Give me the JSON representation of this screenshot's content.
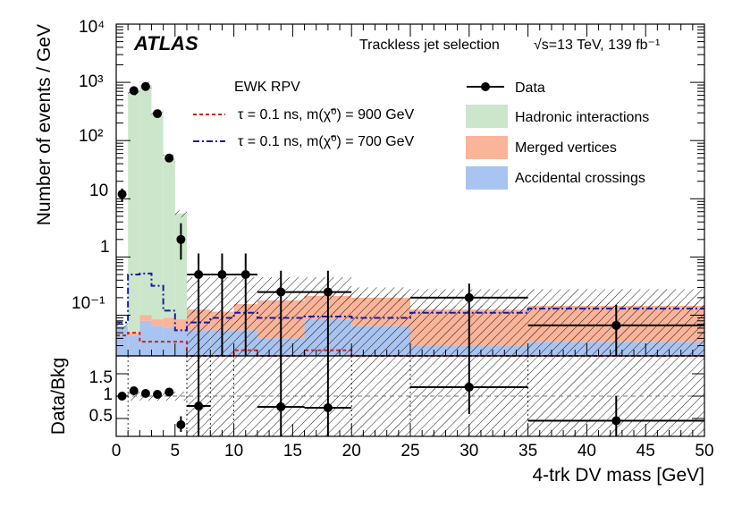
{
  "chart_data": {
    "type": "bar",
    "experiment": "ATLAS",
    "selection": "Trackless jet selection",
    "energy_label": "√s=13 TeV, 139 fb⁻¹",
    "signal_group_label": "EWK RPV",
    "xlabel": "4-trk DV mass [GeV]",
    "ylabel": "Number of events / GeV",
    "ratio_ylabel": "Data/Bkg",
    "xlim": [
      0,
      50
    ],
    "ylim": [
      0.02,
      10000
    ],
    "ratio_ylim": [
      0.1,
      1.9
    ],
    "x_ticks": [
      "0",
      "5",
      "10",
      "15",
      "20",
      "25",
      "30",
      "35",
      "40",
      "45",
      "50"
    ],
    "y_ticks": [
      "10⁻¹",
      "1",
      "10",
      "10²",
      "10³",
      "10⁴"
    ],
    "ratio_ticks": [
      "0.5",
      "1",
      "1.5"
    ],
    "colors": {
      "hadronic": "#cce6cc",
      "merged": "#f9b499",
      "accidental": "#a9c4f0",
      "signal900": "#d62020",
      "signal700": "#1a1aa8"
    },
    "legend": {
      "data": "Data",
      "hadronic": "Hadronic interactions",
      "merged": "Merged vertices",
      "accidental": "Accidental crossings",
      "signal900": "τ = 0.1 ns, m(χ̃⁰) = 900 GeV",
      "signal700": "τ = 0.1 ns, m(χ̃⁰) = 700 GeV"
    },
    "bins": [
      {
        "lo": 0,
        "hi": 1,
        "accidental": 0.065,
        "merged": 0.0,
        "hadronic": 0.0,
        "total": 0.065,
        "sig900": 0.045,
        "sig700": 0.075
      },
      {
        "lo": 1,
        "hi": 2,
        "accidental": 0.045,
        "merged": 0.005,
        "hadronic": 680,
        "total": 680,
        "sig900": 0.05,
        "sig700": 0.5
      },
      {
        "lo": 2,
        "hi": 3,
        "accidental": 0.08,
        "merged": 0.02,
        "hadronic": 900,
        "total": 900,
        "sig900": 0.035,
        "sig700": 0.52
      },
      {
        "lo": 3,
        "hi": 4,
        "accidental": 0.065,
        "merged": 0.02,
        "hadronic": 290,
        "total": 290,
        "sig900": 0.035,
        "sig700": 0.32
      },
      {
        "lo": 4,
        "hi": 5,
        "accidental": 0.06,
        "merged": 0.03,
        "hadronic": 50,
        "total": 50,
        "sig900": 0.035,
        "sig700": 0.12
      },
      {
        "lo": 5,
        "hi": 6,
        "accidental": 0.055,
        "merged": 0.03,
        "hadronic": 5.5,
        "total": 5.5,
        "sig900": 0.035,
        "sig700": 0.055
      },
      {
        "lo": 6,
        "hi": 8,
        "accidental": 0.055,
        "merged": 0.07,
        "hadronic": 0.0,
        "total": 0.125,
        "sig900": 0.012,
        "sig700": 0.075
      },
      {
        "lo": 8,
        "hi": 10,
        "accidental": 0.055,
        "merged": 0.06,
        "hadronic": 0.0,
        "total": 0.115,
        "sig900": 0.012,
        "sig700": 0.09
      },
      {
        "lo": 10,
        "hi": 12,
        "accidental": 0.055,
        "merged": 0.1,
        "hadronic": 0.0,
        "total": 0.155,
        "sig900": 0.025,
        "sig700": 0.11
      },
      {
        "lo": 12,
        "hi": 16,
        "accidental": 0.04,
        "merged": 0.14,
        "hadronic": 0.0,
        "total": 0.18,
        "sig900": 0.013,
        "sig700": 0.09
      },
      {
        "lo": 16,
        "hi": 20,
        "accidental": 0.085,
        "merged": 0.13,
        "hadronic": 0.0,
        "total": 0.215,
        "sig900": 0.025,
        "sig700": 0.095
      },
      {
        "lo": 20,
        "hi": 25,
        "accidental": 0.065,
        "merged": 0.135,
        "hadronic": 0.0,
        "total": 0.2,
        "sig900": 0.014,
        "sig700": 0.09
      },
      {
        "lo": 25,
        "hi": 35,
        "accidental": 0.03,
        "merged": 0.095,
        "hadronic": 0.0,
        "total": 0.125,
        "sig900": 0.015,
        "sig700": 0.11
      },
      {
        "lo": 35,
        "hi": 50,
        "accidental": 0.035,
        "merged": 0.11,
        "hadronic": 0.0,
        "total": 0.145,
        "sig900": 0.014,
        "sig700": 0.13
      }
    ],
    "bkg_unc_band": [
      {
        "lo": 6,
        "hi": 20,
        "down": 0.02,
        "up": 0.45
      },
      {
        "lo": 20,
        "hi": 25,
        "down": 0.02,
        "up": 0.3
      },
      {
        "lo": 25,
        "hi": 35,
        "down": 0.02,
        "up": 0.28
      },
      {
        "lo": 35,
        "hi": 50,
        "down": 0.02,
        "up": 0.28
      }
    ],
    "data_points": [
      {
        "x": 0.5,
        "y": 12,
        "ylo": 9,
        "yhi": 15,
        "xerr": 0
      },
      {
        "x": 1.5,
        "y": 720,
        "ylo": 680,
        "yhi": 760,
        "xerr": 0
      },
      {
        "x": 2.5,
        "y": 850,
        "ylo": 800,
        "yhi": 900,
        "xerr": 0
      },
      {
        "x": 3.5,
        "y": 290,
        "ylo": 260,
        "yhi": 320,
        "xerr": 0
      },
      {
        "x": 4.5,
        "y": 50,
        "ylo": 43,
        "yhi": 57,
        "xerr": 0
      },
      {
        "x": 5.5,
        "y": 2,
        "ylo": 0.9,
        "yhi": 3.8,
        "xerr": 0
      },
      {
        "x": 7,
        "y": 0.5,
        "ylo": 0.02,
        "yhi": 1.15,
        "xerr": 1
      },
      {
        "x": 9,
        "y": 0.5,
        "ylo": 0.02,
        "yhi": 1.15,
        "xerr": 1
      },
      {
        "x": 11,
        "y": 0.5,
        "ylo": 0.02,
        "yhi": 1.15,
        "xerr": 1
      },
      {
        "x": 14,
        "y": 0.25,
        "ylo": 0.02,
        "yhi": 0.58,
        "xerr": 2
      },
      {
        "x": 18,
        "y": 0.25,
        "ylo": 0.02,
        "yhi": 0.58,
        "xerr": 2
      },
      {
        "x": 30,
        "y": 0.2,
        "ylo": 0.02,
        "yhi": 0.35,
        "xerr": 5
      },
      {
        "x": 42.5,
        "y": 0.067,
        "ylo": 0.02,
        "yhi": 0.15,
        "xerr": 7.5
      }
    ],
    "ratio_points": [
      {
        "x": 0.5,
        "y": 1.0,
        "ylo": 1.0,
        "yhi": 1.0,
        "xerr": 0
      },
      {
        "x": 1.5,
        "y": 1.12,
        "ylo": 1.05,
        "yhi": 1.19,
        "xerr": 0
      },
      {
        "x": 2.5,
        "y": 1.06,
        "ylo": 1.0,
        "yhi": 1.12,
        "xerr": 0
      },
      {
        "x": 3.5,
        "y": 1.04,
        "ylo": 0.97,
        "yhi": 1.11,
        "xerr": 0
      },
      {
        "x": 4.5,
        "y": 1.09,
        "ylo": 1.0,
        "yhi": 1.18,
        "xerr": 0
      },
      {
        "x": 5.5,
        "y": 0.36,
        "ylo": 0.2,
        "yhi": 0.55,
        "xerr": 0
      },
      {
        "x": 7,
        "y": 0.78,
        "ylo": 0.1,
        "yhi": 1.9,
        "xerr": 1
      },
      {
        "x": 14,
        "y": 0.76,
        "ylo": 0.1,
        "yhi": 1.9,
        "xerr": 2
      },
      {
        "x": 18,
        "y": 0.74,
        "ylo": 0.1,
        "yhi": 1.9,
        "xerr": 2
      },
      {
        "x": 30,
        "y": 1.2,
        "ylo": 0.6,
        "yhi": 1.9,
        "xerr": 5
      },
      {
        "x": 42.5,
        "y": 0.45,
        "ylo": 0.1,
        "yhi": 1.0,
        "xerr": 7.5
      }
    ],
    "ratio_unc_band": [
      {
        "lo": 0,
        "hi": 6,
        "down": 0.9,
        "up": 1.1
      },
      {
        "lo": 6,
        "hi": 35,
        "down": 0.1,
        "up": 1.9
      },
      {
        "lo": 35,
        "hi": 50,
        "down": 0.1,
        "up": 1.9
      }
    ]
  }
}
